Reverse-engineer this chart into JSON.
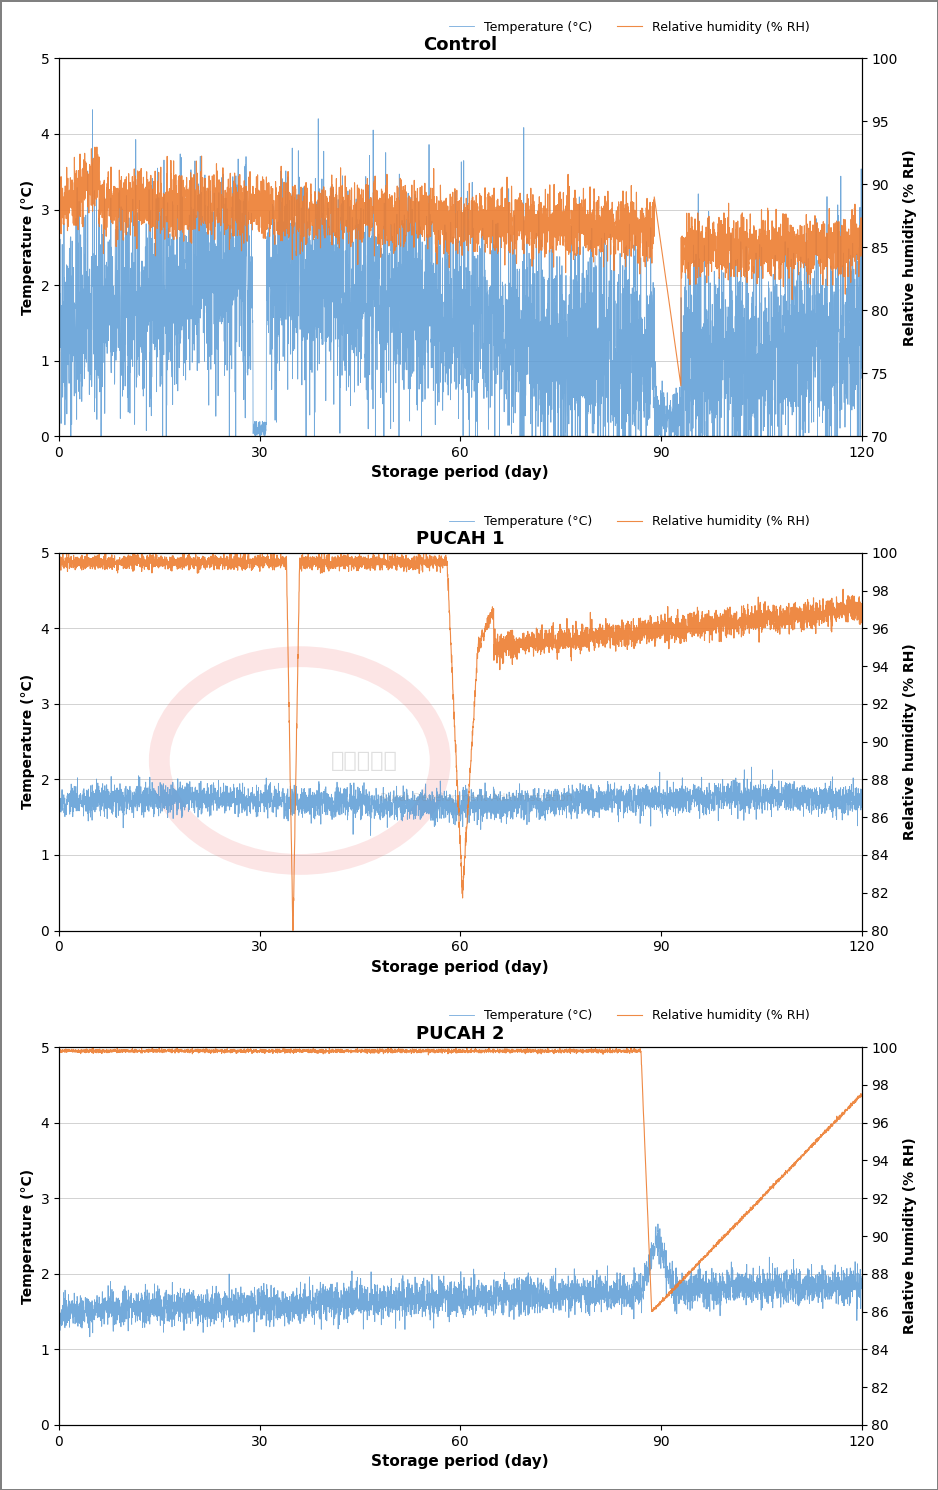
{
  "panels": [
    {
      "title": "Control",
      "temp_ylim": [
        0,
        5
      ],
      "rh_ylim": [
        70,
        100
      ],
      "temp_yticks": [
        0,
        1,
        2,
        3,
        4,
        5
      ],
      "rh_yticks": [
        70,
        75,
        80,
        85,
        90,
        95,
        100
      ],
      "xticks": [
        0,
        30,
        60,
        90,
        120
      ],
      "xlim": [
        0,
        120
      ],
      "temp_color": "#5b9bd5",
      "rh_color": "#ed7d31",
      "grid_color": "#c0c0c0",
      "temp_mean": 1.5,
      "temp_noise": 0.8,
      "rh_mean": 88,
      "rh_noise": 1.5,
      "has_watermark": false
    },
    {
      "title": "PUCAH 1",
      "temp_ylim": [
        0,
        5
      ],
      "rh_ylim": [
        80,
        100
      ],
      "temp_yticks": [
        0,
        1,
        2,
        3,
        4,
        5
      ],
      "rh_yticks": [
        80,
        82,
        84,
        86,
        88,
        90,
        92,
        94,
        96,
        98,
        100
      ],
      "xticks": [
        0,
        30,
        60,
        90,
        120
      ],
      "xlim": [
        0,
        120
      ],
      "temp_color": "#5b9bd5",
      "rh_color": "#ed7d31",
      "grid_color": "#c0c0c0",
      "has_watermark": true
    },
    {
      "title": "PUCAH 2",
      "temp_ylim": [
        0,
        5
      ],
      "rh_ylim": [
        80,
        100
      ],
      "temp_yticks": [
        0,
        1,
        2,
        3,
        4,
        5
      ],
      "rh_yticks": [
        80,
        82,
        84,
        86,
        88,
        90,
        92,
        94,
        96,
        98,
        100
      ],
      "xticks": [
        0,
        30,
        60,
        90,
        120
      ],
      "xlim": [
        0,
        120
      ],
      "temp_color": "#5b9bd5",
      "rh_color": "#ed7d31",
      "grid_color": "#c0c0c0",
      "has_watermark": false
    }
  ],
  "xlabel": "Storage period (day)",
  "ylabel_left": "Temperature (°C)",
  "ylabel_right": "Relative humidity (% RH)",
  "legend_temp": "Temperature (°C)",
  "legend_rh": "Relative humidity (% RH)",
  "figure_bg": "#ffffff",
  "panel_bg": "#ffffff",
  "border_color": "#808080"
}
